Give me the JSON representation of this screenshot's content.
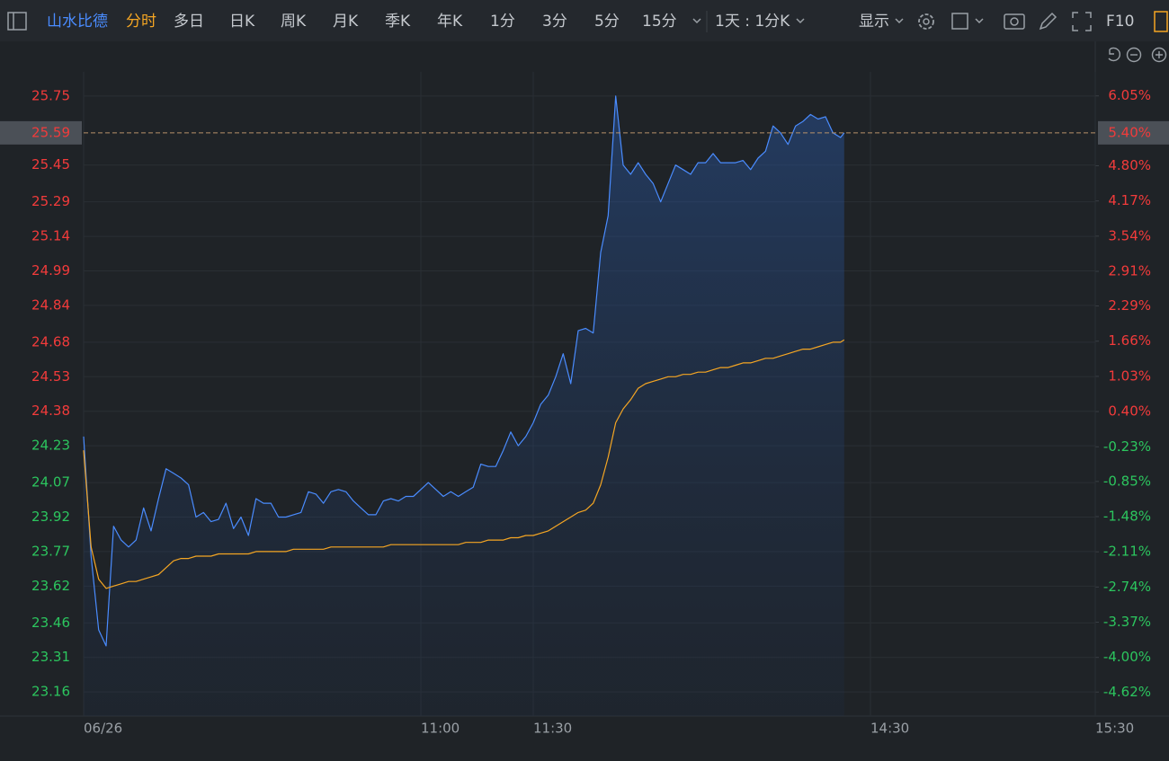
{
  "toolbar": {
    "stock": "山水比德",
    "periods": [
      "分时",
      "多日",
      "日K",
      "周K",
      "月K",
      "季K",
      "年K",
      "1分",
      "3分",
      "5分",
      "15分"
    ],
    "active_period": 0,
    "interval": "1天 : 1分K",
    "display": "显示",
    "f10": "F10"
  },
  "chart_data": {
    "type": "line",
    "x": [
      0,
      2,
      4,
      6,
      8,
      10,
      12,
      14,
      16,
      18,
      20,
      22,
      24,
      26,
      28,
      30,
      32,
      34,
      36,
      38,
      40,
      42,
      44,
      46,
      48,
      50,
      52,
      54,
      56,
      58,
      60,
      62,
      64,
      66,
      68,
      70,
      72,
      74,
      76,
      78,
      80,
      82,
      84,
      86,
      88,
      90,
      92,
      94,
      96,
      98,
      100,
      102,
      104,
      106,
      108,
      110,
      112,
      114,
      116,
      118,
      120,
      122,
      124,
      126,
      128,
      130,
      132,
      134,
      136,
      138,
      140,
      142,
      144,
      146,
      148,
      150,
      152,
      154,
      156,
      158,
      160,
      162,
      164,
      166,
      168,
      170,
      172,
      174,
      176,
      178,
      180,
      182,
      184,
      186,
      188,
      190,
      192,
      194,
      196,
      198,
      200,
      202,
      203
    ],
    "series": [
      {
        "color": "#4a8cff",
        "values": [
          24.27,
          23.75,
          23.43,
          23.36,
          23.88,
          23.82,
          23.79,
          23.82,
          23.96,
          23.86,
          24.0,
          24.13,
          24.11,
          24.09,
          24.06,
          23.92,
          23.94,
          23.9,
          23.91,
          23.98,
          23.87,
          23.92,
          23.84,
          24.0,
          23.98,
          23.98,
          23.92,
          23.92,
          23.93,
          23.94,
          24.03,
          24.02,
          23.98,
          24.03,
          24.04,
          24.03,
          23.99,
          23.96,
          23.93,
          23.93,
          23.99,
          24.0,
          23.99,
          24.01,
          24.01,
          24.04,
          24.07,
          24.04,
          24.01,
          24.03,
          24.01,
          24.03,
          24.05,
          24.15,
          24.14,
          24.14,
          24.21,
          24.29,
          24.23,
          24.27,
          24.33,
          24.41,
          24.45,
          24.53,
          24.63,
          24.5,
          24.73,
          24.74,
          24.72,
          25.07,
          25.23,
          25.75,
          25.45,
          25.41,
          25.46,
          25.41,
          25.37,
          25.29,
          25.37,
          25.45,
          25.43,
          25.41,
          25.46,
          25.46,
          25.5,
          25.46,
          25.46,
          25.46,
          25.47,
          25.43,
          25.48,
          25.51,
          25.62,
          25.59,
          25.54,
          25.62,
          25.64,
          25.67,
          25.65,
          25.66,
          25.59,
          25.57,
          25.59
        ]
      },
      {
        "color": "#f5a623",
        "values": [
          24.21,
          23.79,
          23.65,
          23.61,
          23.62,
          23.63,
          23.64,
          23.64,
          23.65,
          23.66,
          23.67,
          23.7,
          23.73,
          23.74,
          23.74,
          23.75,
          23.75,
          23.75,
          23.76,
          23.76,
          23.76,
          23.76,
          23.76,
          23.77,
          23.77,
          23.77,
          23.77,
          23.77,
          23.78,
          23.78,
          23.78,
          23.78,
          23.78,
          23.79,
          23.79,
          23.79,
          23.79,
          23.79,
          23.79,
          23.79,
          23.79,
          23.8,
          23.8,
          23.8,
          23.8,
          23.8,
          23.8,
          23.8,
          23.8,
          23.8,
          23.8,
          23.81,
          23.81,
          23.81,
          23.82,
          23.82,
          23.82,
          23.83,
          23.83,
          23.84,
          23.84,
          23.85,
          23.86,
          23.88,
          23.9,
          23.92,
          23.94,
          23.95,
          23.98,
          24.06,
          24.18,
          24.33,
          24.39,
          24.43,
          24.48,
          24.5,
          24.51,
          24.52,
          24.53,
          24.53,
          24.54,
          24.54,
          24.55,
          24.55,
          24.56,
          24.57,
          24.57,
          24.58,
          24.59,
          24.59,
          24.6,
          24.61,
          24.61,
          24.62,
          24.63,
          24.64,
          24.65,
          24.65,
          24.66,
          24.67,
          24.68,
          24.68,
          24.69
        ]
      }
    ],
    "xlim": [
      0,
      270
    ],
    "xticks": [
      {
        "value": 0,
        "label": "06/26"
      },
      {
        "value": 90,
        "label": "11:00"
      },
      {
        "value": 120,
        "label": "11:30"
      },
      {
        "value": 210,
        "label": "14:30"
      },
      {
        "value": 270,
        "label": "15:30"
      }
    ],
    "ylim": [
      23.055,
      25.855
    ],
    "yticks": [
      23.16,
      23.31,
      23.46,
      23.62,
      23.77,
      23.92,
      24.07,
      24.23,
      24.38,
      24.53,
      24.68,
      24.84,
      24.99,
      25.14,
      25.29,
      25.45,
      25.75
    ],
    "y2lim": [
      -5.05,
      6.48
    ],
    "y2ticks": [
      {
        "value": -4.62,
        "label": "-4.62%"
      },
      {
        "value": -4.0,
        "label": "-4.00%"
      },
      {
        "value": -3.37,
        "label": "-3.37%"
      },
      {
        "value": -2.74,
        "label": "-2.74%"
      },
      {
        "value": -2.11,
        "label": "-2.11%"
      },
      {
        "value": -1.48,
        "label": "-1.48%"
      },
      {
        "value": -0.85,
        "label": "-0.85%"
      },
      {
        "value": -0.23,
        "label": "-0.23%"
      },
      {
        "value": 0.4,
        "label": "0.40%"
      },
      {
        "value": 1.03,
        "label": "1.03%"
      },
      {
        "value": 1.66,
        "label": "1.66%"
      },
      {
        "value": 2.29,
        "label": "2.29%"
      },
      {
        "value": 2.91,
        "label": "2.91%"
      },
      {
        "value": 3.54,
        "label": "3.54%"
      },
      {
        "value": 4.17,
        "label": "4.17%"
      },
      {
        "value": 4.8,
        "label": "4.80%"
      },
      {
        "value": 6.05,
        "label": "6.05%"
      }
    ],
    "last_price": 25.59,
    "last_change": {
      "value": 5.4,
      "label": "5.40%"
    },
    "up_color": "#f23b3b",
    "down_color": "#2cc55e",
    "grid": true
  }
}
